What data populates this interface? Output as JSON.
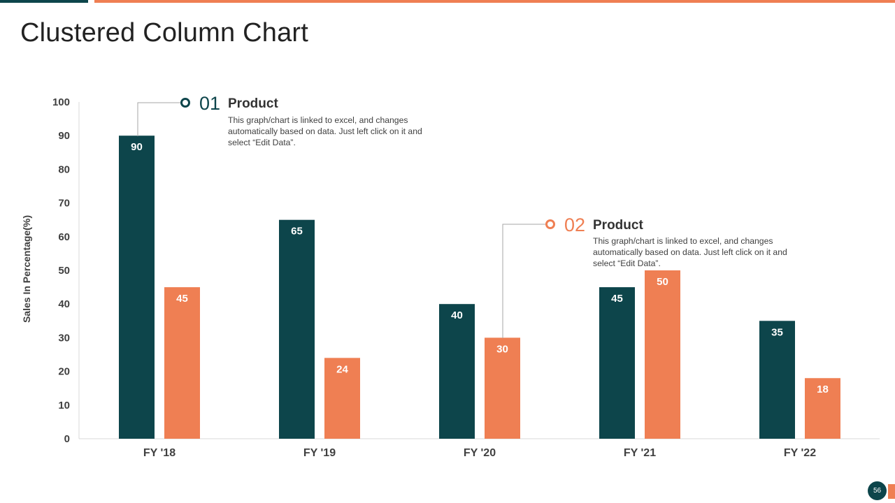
{
  "page": {
    "title": "Clustered Column Chart",
    "page_number": "56"
  },
  "colors": {
    "primary": "#0d454b",
    "accent": "#ef7f53",
    "axis": "#d9d9d9",
    "connector": "#a6a6a6"
  },
  "callouts": [
    {
      "number": "01",
      "title": "Product",
      "description": "This graph/chart is linked to excel, and changes automatically based on data. Just left click on it and select “Edit Data”."
    },
    {
      "number": "02",
      "title": "Product",
      "description": "This graph/chart is linked to excel, and changes automatically based on data. Just left click on it and select “Edit Data”."
    }
  ],
  "chart_data": {
    "type": "bar",
    "categories": [
      "FY '18",
      "FY '19",
      "FY '20",
      "FY '21",
      "FY '22"
    ],
    "series": [
      {
        "values": [
          90,
          65,
          40,
          45,
          35
        ],
        "color": "#0d454b"
      },
      {
        "values": [
          45,
          24,
          30,
          50,
          18
        ],
        "color": "#ef7f53"
      }
    ],
    "ylabel": "Sales In Percentage(%)",
    "ylim": [
      0,
      100
    ],
    "yticks": [
      0,
      10,
      20,
      30,
      40,
      50,
      60,
      70,
      80,
      90,
      100
    ],
    "grid": false,
    "data_labels": true
  }
}
